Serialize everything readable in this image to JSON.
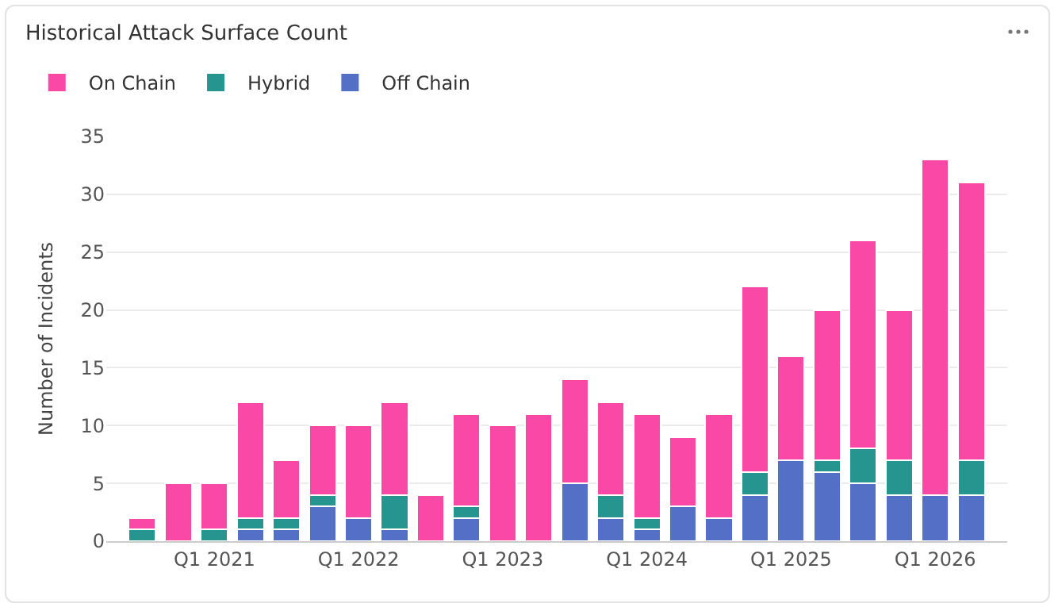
{
  "chart_data": {
    "type": "bar",
    "title": "Historical Attack Surface Count",
    "ylabel": "Number of Incidents",
    "stacked": true,
    "grid": "y",
    "legend": "top left",
    "categories": [
      null,
      null,
      "Q1 2021",
      null,
      null,
      null,
      "Q1 2022",
      null,
      null,
      null,
      "Q1 2023",
      null,
      null,
      null,
      "Q1 2024",
      null,
      null,
      null,
      "Q1 2025",
      null,
      null,
      null,
      "Q1 2026",
      null
    ],
    "series": [
      {
        "name": "Off Chain",
        "color": "#5470c6",
        "values": [
          0,
          0,
          0,
          1,
          1,
          3,
          2,
          1,
          0,
          2,
          0,
          0,
          5,
          2,
          1,
          3,
          2,
          4,
          7,
          6,
          5,
          4,
          4,
          4
        ]
      },
      {
        "name": "Hybrid",
        "color": "#26958f",
        "values": [
          1,
          0,
          1,
          1,
          1,
          1,
          0,
          3,
          0,
          1,
          0,
          0,
          0,
          2,
          1,
          0,
          0,
          2,
          0,
          1,
          3,
          3,
          0,
          3
        ]
      },
      {
        "name": "On Chain",
        "color": "#f948a6",
        "values": [
          1,
          5,
          4,
          10,
          5,
          6,
          8,
          8,
          4,
          8,
          10,
          11,
          9,
          8,
          9,
          6,
          9,
          16,
          9,
          13,
          18,
          13,
          29,
          24
        ]
      }
    ],
    "ylim": [
      0,
      35
    ],
    "yticks": [
      0,
      5,
      10,
      15,
      20,
      25,
      30,
      35
    ]
  }
}
